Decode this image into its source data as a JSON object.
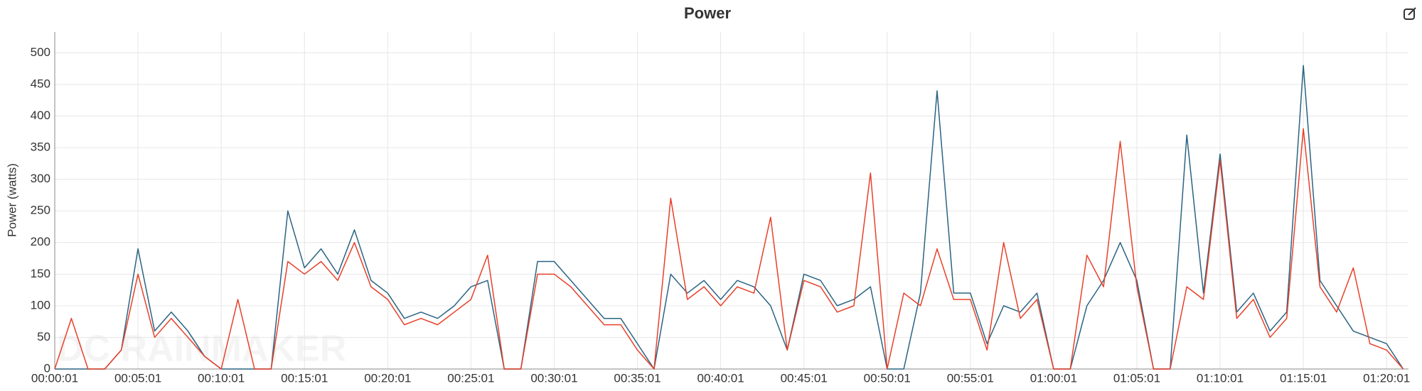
{
  "chart_data": {
    "type": "line",
    "title": "Power",
    "y_label": "Power (watts)",
    "watermark": "DC RAINMAKER",
    "x": [
      1,
      61,
      121,
      181,
      241,
      301,
      361,
      421,
      481,
      541,
      601,
      661,
      721,
      781,
      841,
      901,
      961,
      1021,
      1081,
      1141,
      1201,
      1261,
      1321,
      1381,
      1441,
      1501,
      1561,
      1621,
      1681,
      1741,
      1801,
      1861,
      1921,
      1981,
      2041,
      2101,
      2161,
      2221,
      2281,
      2341,
      2401,
      2461,
      2521,
      2581,
      2641,
      2701,
      2761,
      2821,
      2881,
      2941,
      3001,
      3061,
      3121,
      3181,
      3241,
      3301,
      3361,
      3421,
      3481,
      3541,
      3601,
      3661,
      3721,
      3781,
      3841,
      3901,
      3961,
      4021,
      4081,
      4141,
      4201,
      4261,
      4321,
      4381,
      4441,
      4501,
      4561,
      4621,
      4681,
      4741,
      4801,
      4861
    ],
    "series": [
      {
        "color": "#2a6482",
        "values": [
          0,
          0,
          0,
          0,
          30,
          190,
          60,
          90,
          60,
          20,
          0,
          0,
          0,
          0,
          250,
          160,
          190,
          150,
          220,
          140,
          120,
          80,
          90,
          80,
          100,
          130,
          140,
          0,
          0,
          170,
          170,
          140,
          110,
          80,
          80,
          40,
          0,
          150,
          120,
          140,
          110,
          140,
          130,
          100,
          30,
          150,
          140,
          100,
          110,
          130,
          0,
          0,
          120,
          440,
          120,
          120,
          40,
          100,
          90,
          120,
          0,
          0,
          100,
          140,
          200,
          140,
          0,
          0,
          370,
          120,
          340,
          90,
          120,
          60,
          90,
          480,
          140,
          100,
          60,
          50,
          40,
          0
        ]
      },
      {
        "color": "#e8402a",
        "values": [
          0,
          80,
          0,
          0,
          30,
          150,
          50,
          80,
          50,
          20,
          0,
          110,
          0,
          0,
          170,
          150,
          170,
          140,
          200,
          130,
          110,
          70,
          80,
          70,
          90,
          110,
          180,
          0,
          0,
          150,
          150,
          130,
          100,
          70,
          70,
          30,
          0,
          270,
          110,
          130,
          100,
          130,
          120,
          240,
          30,
          140,
          130,
          90,
          100,
          310,
          0,
          120,
          100,
          190,
          110,
          110,
          30,
          200,
          80,
          110,
          0,
          0,
          180,
          130,
          360,
          130,
          0,
          0,
          130,
          110,
          330,
          80,
          110,
          50,
          80,
          380,
          130,
          90,
          160,
          40,
          30,
          0
        ]
      }
    ],
    "xlim": [
      1,
      4880
    ],
    "xticks": [
      {
        "value": 1,
        "label": "00:00:01"
      },
      {
        "value": 301,
        "label": "00:05:01"
      },
      {
        "value": 601,
        "label": "00:10:01"
      },
      {
        "value": 901,
        "label": "00:15:01"
      },
      {
        "value": 1201,
        "label": "00:20:01"
      },
      {
        "value": 1501,
        "label": "00:25:01"
      },
      {
        "value": 1801,
        "label": "00:30:01"
      },
      {
        "value": 2101,
        "label": "00:35:01"
      },
      {
        "value": 2401,
        "label": "00:40:01"
      },
      {
        "value": 2701,
        "label": "00:45:01"
      },
      {
        "value": 3001,
        "label": "00:50:01"
      },
      {
        "value": 3301,
        "label": "00:55:01"
      },
      {
        "value": 3601,
        "label": "01:00:01"
      },
      {
        "value": 3901,
        "label": "01:05:01"
      },
      {
        "value": 4201,
        "label": "01:10:01"
      },
      {
        "value": 4501,
        "label": "01:15:01"
      },
      {
        "value": 4801,
        "label": "01:20:01"
      }
    ],
    "ylim": [
      0,
      533
    ],
    "yticks": [
      0,
      50,
      100,
      150,
      200,
      250,
      300,
      350,
      400,
      450,
      500
    ],
    "grid": true
  }
}
